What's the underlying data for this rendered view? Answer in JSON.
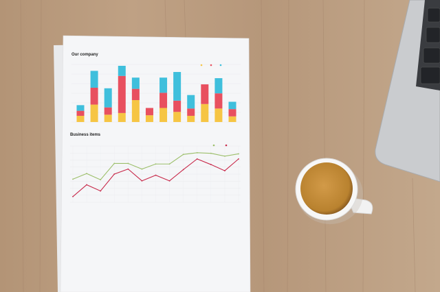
{
  "scene": {
    "colors": {
      "wood": "#b8997a",
      "paper": "#f4f5f7",
      "coffee": "#c28a3c",
      "laptop": "#c9cbcd"
    }
  },
  "chart_data": [
    {
      "type": "bar",
      "title": "Our company",
      "stacked": true,
      "categories": [
        "",
        "",
        "",
        "",
        "",
        "",
        "",
        "",
        "",
        "",
        "",
        ""
      ],
      "series": [
        {
          "color": "#f6c544",
          "values": [
            11,
            31,
            13,
            16,
            39,
            12,
            25,
            18,
            11,
            32,
            24,
            10
          ]
        },
        {
          "color": "#e8505f",
          "values": [
            9,
            30,
            13,
            66,
            20,
            13,
            27,
            20,
            13,
            35,
            27,
            13
          ]
        },
        {
          "color": "#3fbfdc",
          "values": [
            10,
            30,
            34,
            18,
            20,
            0,
            27,
            51,
            24,
            0,
            27,
            13
          ]
        }
      ],
      "ylim": [
        0,
        100
      ],
      "legend": "top-right"
    },
    {
      "type": "line",
      "title": "Business items",
      "x": [
        1,
        2,
        3,
        4,
        5,
        6,
        7,
        8,
        9,
        10,
        11,
        12,
        13
      ],
      "series": [
        {
          "color": "#9cbf6a",
          "values": [
            41,
            51,
            40,
            69,
            69,
            59,
            68,
            68,
            85,
            88,
            87,
            82,
            86
          ]
        },
        {
          "color": "#c8294a",
          "values": [
            10,
            31,
            20,
            50,
            59,
            38,
            48,
            38,
            58,
            77,
            67,
            56,
            77
          ]
        }
      ],
      "ylim": [
        0,
        100
      ],
      "grid": true,
      "legend": "top-right"
    }
  ]
}
